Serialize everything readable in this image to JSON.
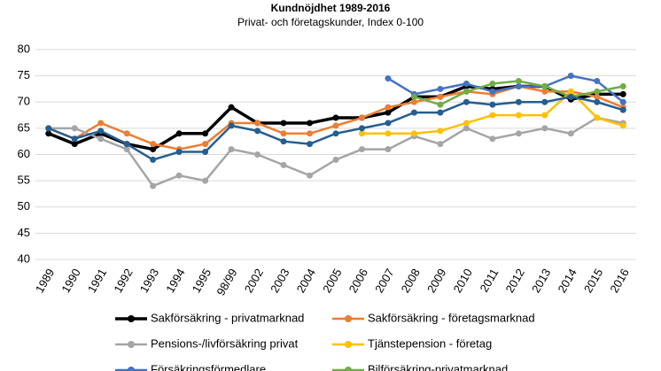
{
  "chart_data": {
    "type": "line",
    "title": "Kundnöjdhet 1989-2016",
    "subtitle": "Privat- och företagskunder, Index 0-100",
    "categories": [
      "1989",
      "1990",
      "1991",
      "1992",
      "1993",
      "1994",
      "1995",
      "98/99",
      "2002",
      "2003",
      "2004",
      "2005",
      "2006",
      "2007",
      "2008",
      "2009",
      "2010",
      "2011",
      "2012",
      "2013",
      "2014",
      "2015",
      "2016"
    ],
    "ylim": [
      40,
      80
    ],
    "yticks": [
      40,
      45,
      50,
      55,
      60,
      65,
      70,
      75,
      80
    ],
    "grid": true,
    "series": [
      {
        "name": "Sakförsäkring - privatmarknad",
        "color": "#000000",
        "values": [
          64,
          62,
          64,
          62,
          61,
          64,
          64,
          69,
          66,
          66,
          66,
          67,
          67,
          68,
          71,
          71,
          73,
          72.5,
          73,
          73,
          70.5,
          71.5,
          71.5
        ]
      },
      {
        "name": "Sakförsäkring - företagsmarknad",
        "color": "#ed7d31",
        "values": [
          65,
          63,
          66,
          64,
          62,
          61,
          62,
          66,
          66,
          64,
          64,
          65.5,
          67,
          69,
          70,
          71,
          72,
          71.5,
          73,
          72,
          72,
          71,
          69
        ]
      },
      {
        "name": "Pensions-/livförsäkring privat",
        "color": "#a5a5a5",
        "values": [
          65,
          65,
          63,
          61,
          54,
          56,
          55,
          61,
          60,
          58,
          56,
          59,
          61,
          61,
          63.5,
          62,
          65,
          63,
          64,
          65,
          64,
          67,
          66
        ]
      },
      {
        "name": "Tjänstepension - företag",
        "color": "#ffc000",
        "values": [
          null,
          null,
          null,
          null,
          null,
          null,
          null,
          null,
          null,
          null,
          null,
          null,
          64,
          64,
          64,
          64.5,
          66,
          67.5,
          67.5,
          67.5,
          72,
          67,
          65.5
        ]
      },
      {
        "name": "Försäkringsförmedlare",
        "color": "#4472c4",
        "values": [
          null,
          null,
          null,
          null,
          null,
          null,
          null,
          null,
          null,
          null,
          null,
          null,
          null,
          74.5,
          71.5,
          72.5,
          73.5,
          72,
          73,
          73,
          75,
          74,
          70
        ]
      },
      {
        "name": "Bilförsäkring-privatmarknad",
        "color": "#70ad47",
        "values": [
          null,
          null,
          null,
          null,
          null,
          null,
          null,
          null,
          null,
          null,
          null,
          null,
          null,
          null,
          71,
          69.5,
          72,
          73.5,
          74,
          73,
          71,
          72,
          73
        ]
      },
      {
        "color": "#255e91",
        "values": [
          65,
          63,
          64.5,
          62,
          59,
          60.5,
          60.5,
          65.5,
          64.5,
          62.5,
          62,
          64,
          65,
          66,
          68,
          68,
          70,
          69.5,
          70,
          70,
          71,
          70,
          68.5
        ]
      }
    ]
  }
}
